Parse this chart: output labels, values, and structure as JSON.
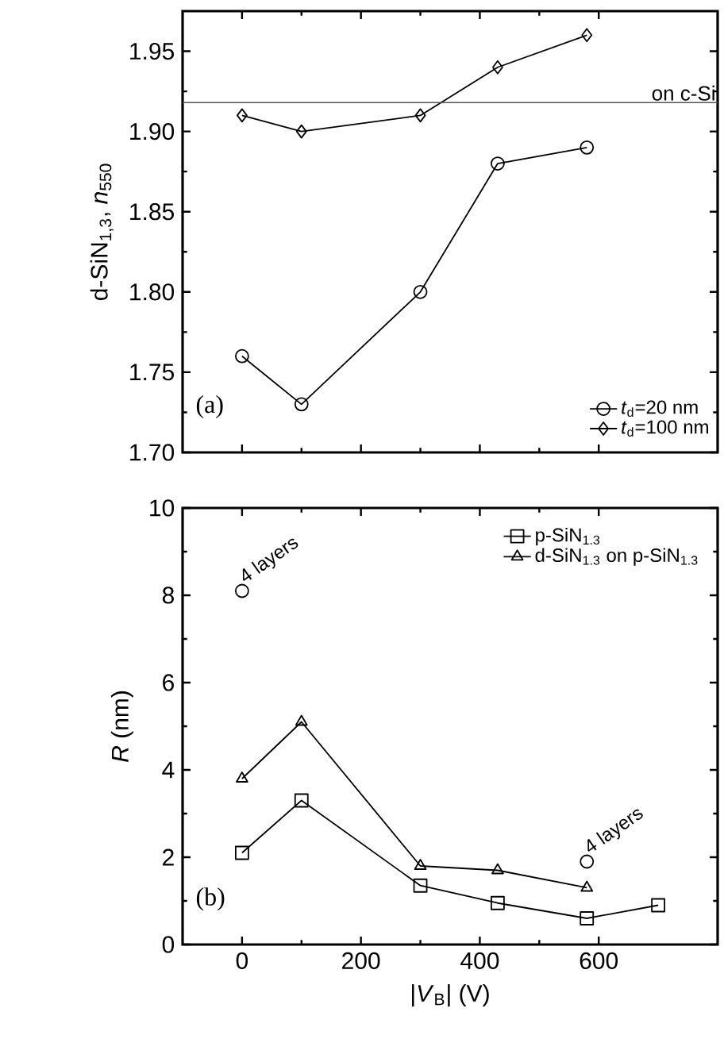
{
  "chart_data": [
    {
      "type": "line",
      "ylabel": "d-SiN$_{1,3}$, *n*$_{550}$",
      "xlim": [
        -100,
        800
      ],
      "xticks": [
        0,
        200,
        400,
        600
      ],
      "ylim": [
        1.7,
        1.975
      ],
      "yticks": [
        {
          "value": 1.7,
          "label": "1.70"
        },
        {
          "value": 1.75,
          "label": "1.75"
        },
        {
          "value": 1.8,
          "label": "1.80"
        },
        {
          "value": 1.85,
          "label": "1.85"
        },
        {
          "value": 1.9,
          "label": "1.90"
        },
        {
          "value": 1.95,
          "label": "1.95"
        }
      ],
      "tick_labels": "y",
      "legend": "bottom right",
      "annotations": [
        "(a)"
      ],
      "ref_lines": [
        {
          "axis": "y",
          "value": 1.918,
          "label": "on c-Si",
          "color": "#555555"
        }
      ],
      "series": [
        {
          "name": "*t*$_{d}$=20 nm",
          "color": "#000000",
          "marker": "circle",
          "x": [
            0,
            100,
            300,
            430,
            580
          ],
          "values": [
            1.76,
            1.73,
            1.8,
            1.88,
            1.89
          ]
        },
        {
          "name": "*t*$_{d}$=100 nm",
          "color": "#000000",
          "marker": "diamond",
          "x": [
            0,
            100,
            300,
            430,
            580
          ],
          "values": [
            1.91,
            1.9,
            1.91,
            1.94,
            1.96
          ]
        }
      ]
    },
    {
      "type": "line",
      "xlabel": "|*V*$_{B}$| (V)",
      "ylabel": "*R* (nm)",
      "xlim": [
        -100,
        800
      ],
      "xticks": [
        0,
        200,
        400,
        600
      ],
      "ylim": [
        0,
        10
      ],
      "yticks": [
        0,
        2,
        4,
        6,
        8,
        10
      ],
      "legend": "top right",
      "annotations": [
        "(b)",
        {
          "text": "4 layers",
          "x": 0,
          "y": 8.1
        },
        {
          "text": "4 layers",
          "x": 580,
          "y": 1.9
        }
      ],
      "series": [
        {
          "name": "p-SiN$_{1.3}$",
          "color": "#000000",
          "marker": "square",
          "x": [
            0,
            100,
            300,
            430,
            580,
            700
          ],
          "values": [
            2.1,
            3.3,
            1.35,
            0.95,
            0.6,
            0.9
          ]
        },
        {
          "name": "d-SiN$_{1.3}$ on p-SiN$_{1.3}$",
          "color": "#000000",
          "marker": "triangle",
          "x": [
            0,
            100,
            300,
            430,
            580
          ],
          "values": [
            3.8,
            5.1,
            1.8,
            1.7,
            1.3
          ]
        },
        {
          "type": "scatter",
          "color": "#000000",
          "marker": "circle",
          "x": [
            0,
            580
          ],
          "values": [
            8.1,
            1.9
          ]
        }
      ]
    }
  ]
}
